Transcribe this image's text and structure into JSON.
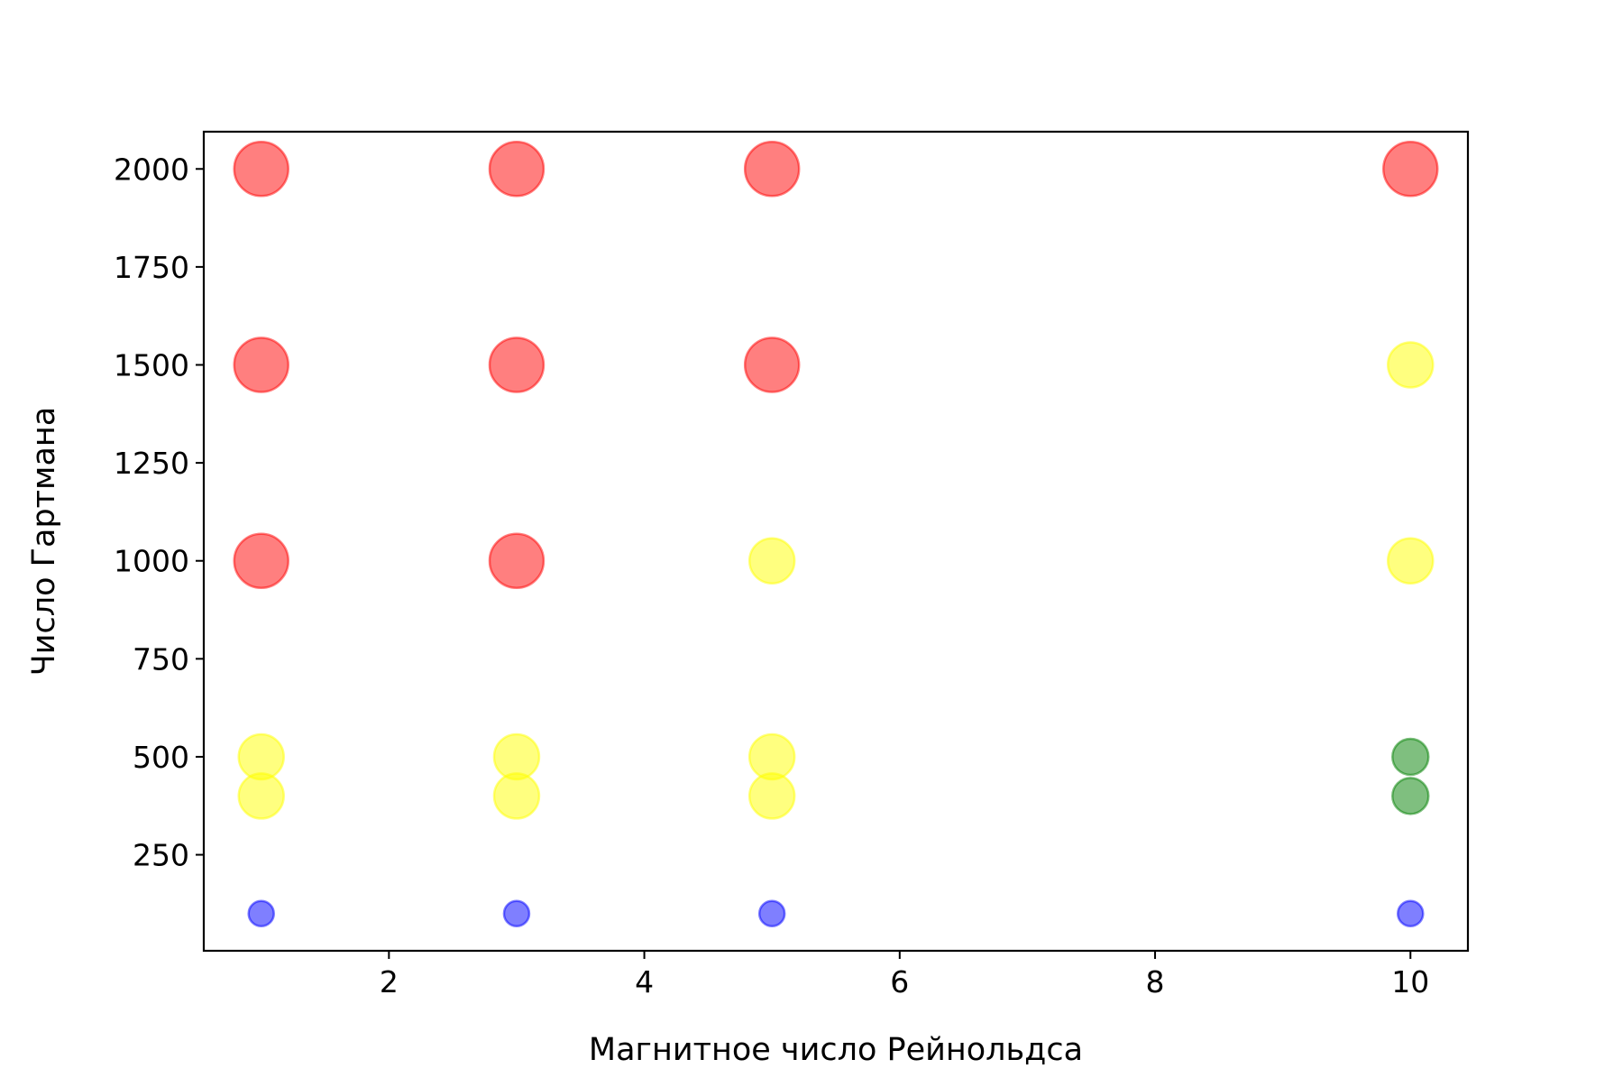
{
  "chart_data": {
    "type": "scatter",
    "xlabel": "Магнитное число Рейнольдса",
    "ylabel": "Число Гартмана",
    "xlim": [
      0.55,
      10.45
    ],
    "ylim": [
      5,
      2095
    ],
    "xticks": [
      2,
      4,
      6,
      8,
      10
    ],
    "yticks": [
      250,
      500,
      750,
      1000,
      1250,
      1500,
      1750,
      2000
    ],
    "grid": false,
    "legend": "none",
    "marker_alpha": 0.5,
    "points": [
      {
        "x": 1,
        "y": 100,
        "color": "#0000ff",
        "size": "small"
      },
      {
        "x": 3,
        "y": 100,
        "color": "#0000ff",
        "size": "small"
      },
      {
        "x": 5,
        "y": 100,
        "color": "#0000ff",
        "size": "small"
      },
      {
        "x": 10,
        "y": 100,
        "color": "#0000ff",
        "size": "small"
      },
      {
        "x": 1,
        "y": 400,
        "color": "#ffff00",
        "size": "medium"
      },
      {
        "x": 3,
        "y": 400,
        "color": "#ffff00",
        "size": "medium"
      },
      {
        "x": 5,
        "y": 400,
        "color": "#ffff00",
        "size": "medium"
      },
      {
        "x": 10,
        "y": 400,
        "color": "#008000",
        "size": "medium-small"
      },
      {
        "x": 1,
        "y": 500,
        "color": "#ffff00",
        "size": "medium"
      },
      {
        "x": 3,
        "y": 500,
        "color": "#ffff00",
        "size": "medium"
      },
      {
        "x": 5,
        "y": 500,
        "color": "#ffff00",
        "size": "medium"
      },
      {
        "x": 10,
        "y": 500,
        "color": "#008000",
        "size": "medium-small"
      },
      {
        "x": 1,
        "y": 1000,
        "color": "#ff0000",
        "size": "large"
      },
      {
        "x": 3,
        "y": 1000,
        "color": "#ff0000",
        "size": "large"
      },
      {
        "x": 5,
        "y": 1000,
        "color": "#ffff00",
        "size": "medium"
      },
      {
        "x": 10,
        "y": 1000,
        "color": "#ffff00",
        "size": "medium"
      },
      {
        "x": 1,
        "y": 1500,
        "color": "#ff0000",
        "size": "large"
      },
      {
        "x": 3,
        "y": 1500,
        "color": "#ff0000",
        "size": "large"
      },
      {
        "x": 5,
        "y": 1500,
        "color": "#ff0000",
        "size": "large"
      },
      {
        "x": 10,
        "y": 1500,
        "color": "#ffff00",
        "size": "medium"
      },
      {
        "x": 1,
        "y": 2000,
        "color": "#ff0000",
        "size": "large"
      },
      {
        "x": 3,
        "y": 2000,
        "color": "#ff0000",
        "size": "large"
      },
      {
        "x": 5,
        "y": 2000,
        "color": "#ff0000",
        "size": "large"
      },
      {
        "x": 10,
        "y": 2000,
        "color": "#ff0000",
        "size": "large"
      }
    ]
  }
}
